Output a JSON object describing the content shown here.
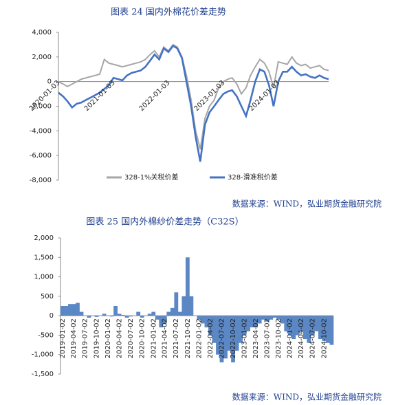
{
  "chart_data": [
    {
      "type": "line",
      "title": "图表 24  国内外棉花价差走势",
      "source": "数据来源：WIND，弘业期货金融研究院",
      "x": [
        "2020-01",
        "2020-02",
        "2020-03",
        "2020-04",
        "2020-05",
        "2020-06",
        "2020-07",
        "2020-08",
        "2020-09",
        "2020-10",
        "2020-11",
        "2020-12",
        "2021-01",
        "2021-02",
        "2021-03",
        "2021-04",
        "2021-05",
        "2021-06",
        "2021-07",
        "2021-08",
        "2021-09",
        "2021-10",
        "2021-11",
        "2021-12",
        "2022-01",
        "2022-02",
        "2022-03",
        "2022-04",
        "2022-05",
        "2022-06",
        "2022-07",
        "2022-08",
        "2022-09",
        "2022-10",
        "2022-11",
        "2022-12",
        "2023-01",
        "2023-02",
        "2023-03",
        "2023-04",
        "2023-05",
        "2023-06",
        "2023-07",
        "2023-08",
        "2023-09",
        "2023-10",
        "2023-11",
        "2023-12",
        "2024-01",
        "2024-02",
        "2024-03",
        "2024-04",
        "2024-05",
        "2024-06",
        "2024-07",
        "2024-08",
        "2024-09",
        "2024-10",
        "2024-11",
        "2024-12"
      ],
      "xticks": [
        "2020-01-03",
        "2021-01-03",
        "2022-01-03",
        "2023-01-03",
        "2024-01-03"
      ],
      "series": [
        {
          "name": "328-1%关税价差",
          "color": "#a6a6a6",
          "values": [
            0,
            -200,
            -400,
            -200,
            0,
            200,
            300,
            400,
            500,
            600,
            1800,
            1500,
            1400,
            1300,
            1200,
            1300,
            1400,
            1500,
            1600,
            1800,
            2200,
            2500,
            2000,
            2800,
            2500,
            3000,
            2800,
            2000,
            500,
            -1500,
            -4000,
            -5500,
            -3000,
            -2000,
            -1500,
            -500,
            0,
            200,
            300,
            -200,
            -1000,
            -500,
            500,
            1200,
            1800,
            1500,
            800,
            -500,
            1600,
            1500,
            1400,
            2000,
            1500,
            1300,
            1400,
            1100,
            1200,
            1300,
            1000,
            900
          ]
        },
        {
          "name": "328-滑准税价差",
          "color": "#4472c4",
          "values": [
            -900,
            -1200,
            -1600,
            -2100,
            -1800,
            -1700,
            -1500,
            -1300,
            -1100,
            -900,
            -600,
            -300,
            300,
            200,
            100,
            500,
            700,
            800,
            900,
            1200,
            1700,
            2200,
            1800,
            2700,
            2400,
            2900,
            2700,
            1900,
            0,
            -2000,
            -4500,
            -6500,
            -3500,
            -2500,
            -2000,
            -1500,
            -1000,
            -800,
            -700,
            -1200,
            -2000,
            -2800,
            -1500,
            0,
            1000,
            800,
            -300,
            -2000,
            0,
            800,
            800,
            1200,
            800,
            500,
            600,
            400,
            300,
            500,
            300,
            200
          ]
        }
      ],
      "ylim": [
        -8000,
        4000
      ],
      "yticks": [
        {
          "value": 4000,
          "label": "4,000"
        },
        {
          "value": 2000,
          "label": "2,000"
        },
        0,
        {
          "value": -2000,
          "label": "-2,000"
        },
        {
          "value": -4000,
          "label": "-4,000"
        },
        {
          "value": -6000,
          "label": "-6,000"
        },
        {
          "value": -8000,
          "label": "-8,000"
        }
      ],
      "legend": "bottom"
    },
    {
      "type": "bar",
      "title": "图表 25  国内外棉纱价差走势（C32S）",
      "source": "数据来源：WIND，弘业期货金融研究院",
      "color": "#5b87c5",
      "x": [
        "2019-01",
        "2019-02",
        "2019-03",
        "2019-04",
        "2019-05",
        "2019-06",
        "2019-07",
        "2019-08",
        "2019-09",
        "2019-10",
        "2019-11",
        "2019-12",
        "2020-01",
        "2020-02",
        "2020-03",
        "2020-04",
        "2020-05",
        "2020-06",
        "2020-07",
        "2020-08",
        "2020-09",
        "2020-10",
        "2020-11",
        "2020-12",
        "2021-01",
        "2021-02",
        "2021-03",
        "2021-04",
        "2021-05",
        "2021-06",
        "2021-07",
        "2021-08",
        "2021-09",
        "2021-10",
        "2021-11",
        "2021-12",
        "2022-01",
        "2022-02",
        "2022-03",
        "2022-04",
        "2022-05",
        "2022-06",
        "2022-07",
        "2022-08",
        "2022-09",
        "2022-10",
        "2022-11",
        "2022-12",
        "2023-01",
        "2023-02",
        "2023-03",
        "2023-04",
        "2023-05",
        "2023-06",
        "2023-07",
        "2023-08",
        "2023-09",
        "2023-10",
        "2023-11",
        "2023-12",
        "2024-01",
        "2024-02",
        "2024-03",
        "2024-04",
        "2024-05",
        "2024-06",
        "2024-07",
        "2024-08",
        "2024-09",
        "2024-10",
        "2024-11",
        "2024-12"
      ],
      "values": [
        250,
        250,
        300,
        300,
        330,
        100,
        0,
        -50,
        0,
        -30,
        0,
        50,
        0,
        -20,
        250,
        50,
        20,
        -50,
        -20,
        0,
        100,
        -50,
        0,
        50,
        100,
        -100,
        -300,
        -200,
        100,
        200,
        600,
        100,
        500,
        1500,
        500,
        0,
        -100,
        -200,
        -300,
        -500,
        -700,
        -1000,
        -1200,
        -1100,
        -900,
        -1200,
        -900,
        -700,
        -500,
        -400,
        -300,
        -300,
        -200,
        -100,
        -150,
        -100,
        -50,
        -100,
        -200,
        -400,
        -500,
        -600,
        -500,
        -400,
        -600,
        -700,
        -500,
        -400,
        -600,
        -650,
        -700,
        -750
      ],
      "xticks": [
        "2019-01-02",
        "2019-04-02",
        "2019-07-02",
        "2019-10-02",
        "2020-01-02",
        "2020-04-02",
        "2020-07-02",
        "2020-10-02",
        "2021-01-02",
        "2021-04-02",
        "2021-07-02",
        "2021-10-02",
        "2022-01-02",
        "2022-04-02",
        "2022-07-02",
        "2022-10-02",
        "2023-01-02",
        "2023-04-02",
        "2023-07-02",
        "2023-10-02",
        "2024-01-02",
        "2024-04-02",
        "2024-07-02",
        "2024-10-02"
      ],
      "ylim": [
        -1500,
        2000
      ],
      "yticks": [
        {
          "value": 2000,
          "label": "2,000"
        },
        {
          "value": 1500,
          "label": "1,500"
        },
        {
          "value": 1000,
          "label": "1,000"
        },
        500,
        0,
        -500,
        {
          "value": -1000,
          "label": "-1,000"
        },
        {
          "value": -1500,
          "label": "-1,500"
        }
      ]
    }
  ]
}
